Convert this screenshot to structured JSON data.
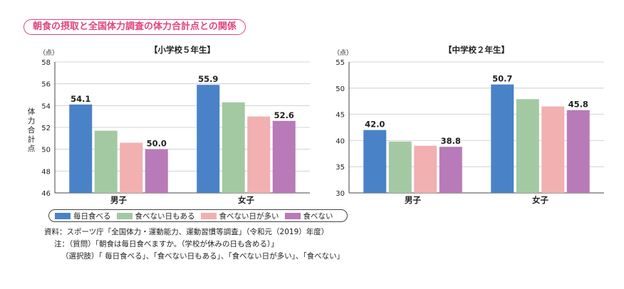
{
  "figure_title": "朝食の摂取と全国体力調査の体力合計点との関係",
  "colors": {
    "title": "#e0457b",
    "series": [
      "#4a82c8",
      "#a3c9a3",
      "#f2b0b0",
      "#b87ab9"
    ]
  },
  "chart_data": [
    {
      "type": "bar",
      "title": "【小学校５年生】",
      "unit_label": "（点）",
      "ylabel": "体力合計点",
      "categories": [
        "男子",
        "女子"
      ],
      "ylim": [
        46,
        58
      ],
      "yticks": [
        46,
        48,
        50,
        52,
        54,
        56,
        58
      ],
      "grid": true,
      "series": [
        {
          "name": "毎日食べる",
          "values": [
            54.1,
            55.9
          ]
        },
        {
          "name": "食べない日もある",
          "values": [
            51.7,
            54.3
          ]
        },
        {
          "name": "食べない日が多い",
          "values": [
            50.6,
            53.0
          ]
        },
        {
          "name": "食べない",
          "values": [
            50.0,
            52.6
          ]
        }
      ],
      "data_labels": [
        [
          "54.1",
          "",
          "",
          "50.0"
        ],
        [
          "55.9",
          "",
          "",
          "52.6"
        ]
      ]
    },
    {
      "type": "bar",
      "title": "【中学校２年生】",
      "unit_label": "（点）",
      "ylabel": "",
      "categories": [
        "男子",
        "女子"
      ],
      "ylim": [
        30,
        55
      ],
      "yticks": [
        30,
        35,
        40,
        45,
        50,
        55
      ],
      "grid": true,
      "series": [
        {
          "name": "毎日食べる",
          "values": [
            42.0,
            50.7
          ]
        },
        {
          "name": "食べない日もある",
          "values": [
            39.8,
            47.9
          ]
        },
        {
          "name": "食べない日が多い",
          "values": [
            39.0,
            46.5
          ]
        },
        {
          "name": "食べない",
          "values": [
            38.8,
            45.8
          ]
        }
      ],
      "data_labels": [
        [
          "42.0",
          "",
          "",
          "38.8"
        ],
        [
          "50.7",
          "",
          "",
          "45.8"
        ]
      ]
    }
  ],
  "legend": [
    "毎日食べる",
    "食べない日もある",
    "食べない日が多い",
    "食べない"
  ],
  "notes": [
    "資料：スポーツ庁「全国体力・運動能力、運動習慣等調査」（令和元（2019）年度）",
    "注：（質問）「朝食は毎日食べますか。（学校が休みの日も含める）」",
    "（選択肢）「 毎日食べる」、「食べない日もある」、「食べない日が多い」、「食べない」"
  ]
}
